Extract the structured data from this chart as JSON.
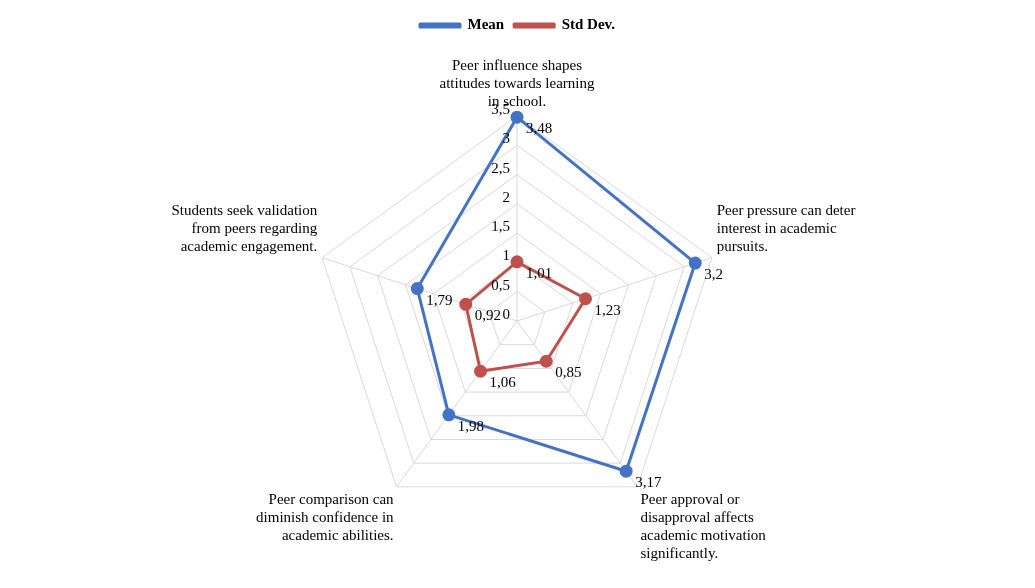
{
  "chart_data": {
    "type": "radar",
    "categories": [
      "Peer influence shapes attitudes towards learning in school.",
      "Peer pressure can deter interest in academic pursuits.",
      "Peer approval or disapproval affects academic motivation significantly.",
      "Peer comparison can diminish confidence in academic abilities.",
      "Students seek validation from peers regarding academic engagement."
    ],
    "ylim": [
      0,
      3.5
    ],
    "yticks": [
      0,
      {
        "value": 0.5,
        "label": "0,5"
      },
      1,
      {
        "value": 1.5,
        "label": "1,5"
      },
      2,
      {
        "value": 2.5,
        "label": "2,5"
      },
      3,
      {
        "value": 3.5,
        "label": "3,5"
      }
    ],
    "legend": "top",
    "grid": true,
    "marker": "circle",
    "series": [
      {
        "name": "Mean",
        "color": "#4472c4",
        "values": [
          3.48,
          3.2,
          3.17,
          1.98,
          1.79
        ],
        "value_labels": [
          "3,48",
          "3,2",
          "3,17",
          "1,98",
          "1,79"
        ]
      },
      {
        "name": "Std Dev.",
        "color": "#c0504d",
        "values": [
          1.01,
          1.23,
          0.85,
          1.06,
          0.92
        ],
        "value_labels": [
          "1,01",
          "1,23",
          "0,85",
          "1,06",
          "0,92"
        ]
      }
    ]
  }
}
